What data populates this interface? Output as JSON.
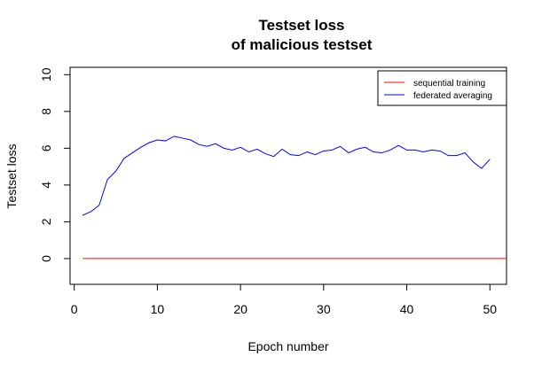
{
  "chart_data": {
    "type": "line",
    "title": [
      "Testset loss",
      "of malicious testset"
    ],
    "xlabel": "Epoch number",
    "ylabel": "Testset loss",
    "xlim": [
      -0.5,
      52
    ],
    "ylim": [
      -1.4,
      10.4
    ],
    "xticks": [
      0,
      10,
      20,
      30,
      40,
      50
    ],
    "yticks": [
      0,
      2,
      4,
      6,
      8,
      10
    ],
    "grid": false,
    "legend_position": "top-right",
    "series": [
      {
        "name": "sequential training",
        "color": "#ff0000",
        "x": [
          1,
          52
        ],
        "y": [
          0,
          0
        ]
      },
      {
        "name": "federated averaging",
        "color": "#0000ff",
        "x": [
          1,
          2,
          3,
          4,
          5,
          6,
          7,
          8,
          9,
          10,
          11,
          12,
          13,
          14,
          15,
          16,
          17,
          18,
          19,
          20,
          21,
          22,
          23,
          24,
          25,
          26,
          27,
          28,
          29,
          30,
          31,
          32,
          33,
          34,
          35,
          36,
          37,
          38,
          39,
          40,
          41,
          42,
          43,
          44,
          45,
          46,
          47,
          48,
          49,
          50
        ],
        "y": [
          2.35,
          2.55,
          2.9,
          4.3,
          4.75,
          5.45,
          5.75,
          6.05,
          6.3,
          6.45,
          6.4,
          6.65,
          6.55,
          6.45,
          6.2,
          6.1,
          6.25,
          6.0,
          5.9,
          6.05,
          5.8,
          5.95,
          5.7,
          5.55,
          5.95,
          5.65,
          5.6,
          5.8,
          5.65,
          5.85,
          5.9,
          6.1,
          5.75,
          5.95,
          6.05,
          5.8,
          5.75,
          5.9,
          6.15,
          5.9,
          5.9,
          5.8,
          5.9,
          5.85,
          5.6,
          5.6,
          5.75,
          5.25,
          4.9,
          5.4
        ]
      }
    ]
  }
}
